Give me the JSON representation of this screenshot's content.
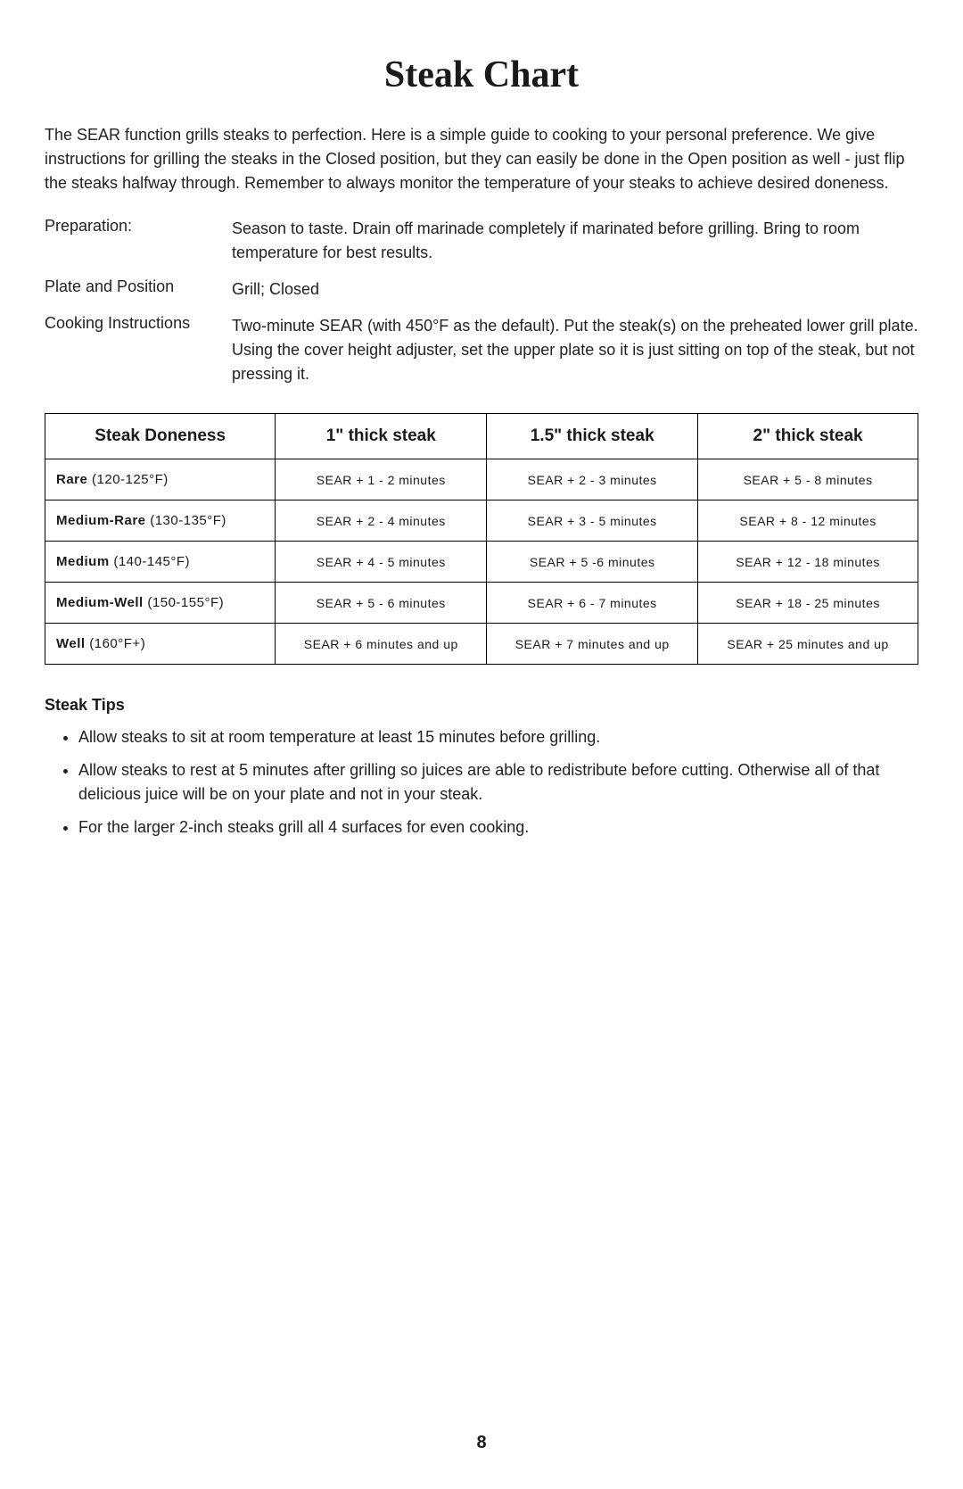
{
  "title": "Steak Chart",
  "intro": "The SEAR function grills steaks to perfection. Here is a simple guide to cooking to your personal preference. We give instructions for grilling the steaks in the Closed position, but they can easily be done in the Open position as well - just flip the steaks halfway through. Remember to always monitor the temperature of your steaks to achieve desired doneness.",
  "info": {
    "preparation": {
      "label": "Preparation:",
      "value": "Season to taste. Drain off marinade completely if marinated before grilling. Bring to room temperature for best results."
    },
    "plate": {
      "label": "Plate and Position",
      "value": "Grill; Closed"
    },
    "cooking": {
      "label": "Cooking Instructions",
      "value": "Two-minute SEAR (with 450°F as the default). Put the steak(s) on the preheated lower grill plate. Using the cover height adjuster, set the upper plate so it is just sitting on top of the steak, but not pressing it."
    }
  },
  "table": {
    "headers": [
      "Steak Doneness",
      "1\" thick steak",
      "1.5\" thick steak",
      "2\" thick steak"
    ],
    "rows": [
      {
        "name": "Rare",
        "temp": "(120-125°F)",
        "c1": "SEAR + 1 - 2 minutes",
        "c2": "SEAR + 2 - 3 minutes",
        "c3": "SEAR + 5 - 8 minutes"
      },
      {
        "name": "Medium-Rare",
        "temp": "(130-135°F)",
        "c1": "SEAR + 2 - 4 minutes",
        "c2": "SEAR + 3 - 5 minutes",
        "c3": "SEAR + 8 - 12 minutes"
      },
      {
        "name": "Medium",
        "temp": "(140-145°F)",
        "c1": "SEAR + 4 - 5 minutes",
        "c2": "SEAR + 5 -6 minutes",
        "c3": "SEAR + 12 - 18 minutes"
      },
      {
        "name": "Medium-Well",
        "temp": "(150-155°F)",
        "c1": "SEAR + 5 - 6 minutes",
        "c2": "SEAR + 6 - 7 minutes",
        "c3": "SEAR + 18 - 25 minutes"
      },
      {
        "name": "Well",
        "temp": "(160°F+)",
        "c1": "SEAR + 6 minutes and up",
        "c2": "SEAR + 7 minutes and up",
        "c3": "SEAR + 25 minutes and up"
      }
    ]
  },
  "tips": {
    "heading": "Steak Tips",
    "items": [
      "Allow steaks to sit at room temperature at least 15 minutes before grilling.",
      "Allow steaks to rest at 5 minutes after grilling so juices are able to redistribute before cutting. Otherwise all of that delicious juice will be on your plate and not in your steak.",
      "For the larger 2-inch steaks grill all 4 surfaces for even cooking."
    ]
  },
  "pageNumber": "8"
}
